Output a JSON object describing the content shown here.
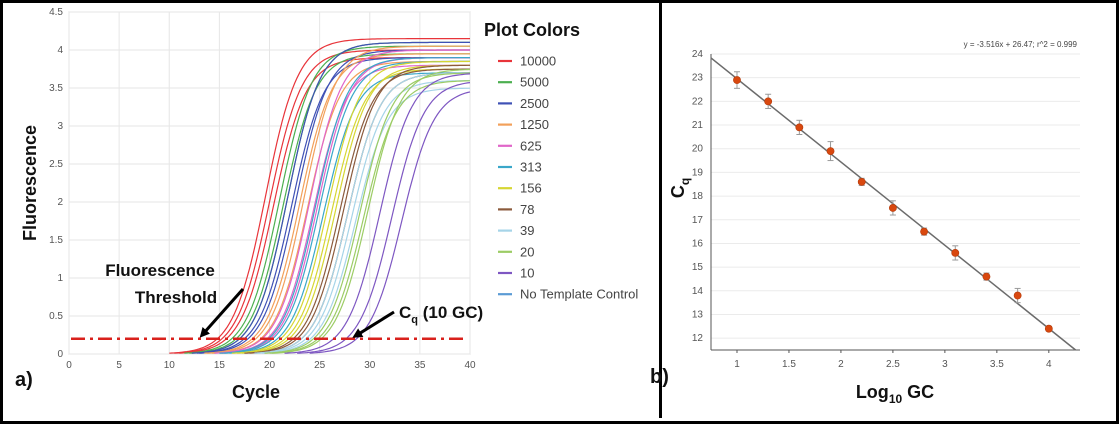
{
  "chart_data": [
    {
      "type": "line",
      "panel_label": "a)",
      "xlabel": "Cycle",
      "ylabel": "Fluorescence",
      "xlim": [
        0,
        40
      ],
      "ylim": [
        0,
        4.5
      ],
      "xticks": [
        0,
        5,
        10,
        15,
        20,
        25,
        30,
        35,
        40
      ],
      "yticks": [
        0,
        0.5,
        1,
        1.5,
        2,
        2.5,
        3,
        3.5,
        4,
        4.5
      ],
      "ytick_labels": [
        "0",
        "0.5",
        "1",
        "1.5",
        "2",
        "2.5",
        "3",
        "3.5",
        "4",
        "4.5"
      ],
      "legend_title": "Plot Colors",
      "threshold": 0.2,
      "threshold_color": "#d9211c",
      "annotations": {
        "threshold_label": [
          "Fluorescence",
          "Threshold"
        ],
        "cq_label": "C",
        "cq_sub": "q",
        "cq_rest": " (10 GC)",
        "cq_arrow_target": [
          28,
          0.2
        ],
        "threshold_arrow_target": [
          12.5,
          0.2
        ]
      },
      "series": [
        {
          "name": "10000",
          "color": "#e8343a",
          "midpoints": [
            19.6,
            20.0,
            20.4
          ],
          "plateaus": [
            4.15,
            4.0,
            3.9
          ]
        },
        {
          "name": "5000",
          "color": "#4caf50",
          "midpoints": [
            21.0,
            21.4,
            21.8
          ],
          "plateaus": [
            4.05,
            3.95,
            4.1
          ]
        },
        {
          "name": "2500",
          "color": "#3f51b5",
          "midpoints": [
            21.8,
            22.2,
            22.6
          ],
          "plateaus": [
            4.1,
            3.9,
            4.0
          ]
        },
        {
          "name": "1250",
          "color": "#f2a05a",
          "midpoints": [
            23.0,
            23.4,
            23.8
          ],
          "plateaus": [
            3.95,
            4.05,
            3.85
          ]
        },
        {
          "name": "625",
          "color": "#e066c9",
          "midpoints": [
            24.0,
            24.4,
            24.8
          ],
          "plateaus": [
            4.0,
            3.8,
            3.9
          ]
        },
        {
          "name": "313",
          "color": "#3aa7c9",
          "midpoints": [
            24.6,
            25.0,
            25.4
          ],
          "plateaus": [
            3.9,
            3.85,
            3.7
          ]
        },
        {
          "name": "156",
          "color": "#d6d633",
          "midpoints": [
            25.8,
            26.2,
            26.6
          ],
          "plateaus": [
            3.85,
            3.75,
            3.8
          ]
        },
        {
          "name": "78",
          "color": "#8b5a3c",
          "midpoints": [
            27.0,
            27.4,
            27.8
          ],
          "plateaus": [
            3.75,
            3.8,
            3.7
          ]
        },
        {
          "name": "39",
          "color": "#a6d4e8",
          "midpoints": [
            27.8,
            28.2,
            28.6
          ],
          "plateaus": [
            3.7,
            3.6,
            3.5
          ]
        },
        {
          "name": "20",
          "color": "#9ccc65",
          "midpoints": [
            29.0,
            29.4,
            29.8
          ],
          "plateaus": [
            3.7,
            3.6,
            3.75
          ]
        },
        {
          "name": "10",
          "color": "#7e57c2",
          "midpoints": [
            31.0,
            32.2,
            33.2
          ],
          "plateaus": [
            3.7,
            3.6,
            3.5
          ]
        },
        {
          "name": "No Template Control",
          "color": "#5b9bd5",
          "midpoints": [],
          "plateaus": []
        }
      ]
    },
    {
      "type": "scatter",
      "panel_label": "b)",
      "xlabel_main": "Log",
      "xlabel_sub": "10",
      "xlabel_rest": " GC",
      "ylabel_main": "C",
      "ylabel_sub": "q",
      "xlim": [
        0.75,
        4.3
      ],
      "ylim": [
        11.5,
        24
      ],
      "xticks": [
        1,
        1.5,
        2,
        2.5,
        3,
        3.5,
        4
      ],
      "xtick_labels": [
        "1",
        "1.5",
        "2",
        "2.5",
        "3",
        "3.5",
        "4"
      ],
      "yticks": [
        12,
        13,
        14,
        15,
        16,
        17,
        18,
        19,
        20,
        21,
        22,
        23,
        24
      ],
      "equation": "y = -3.516x + 26.47; r^2 = 0.999",
      "fit_slope": -3.516,
      "fit_intercept": 26.47,
      "point_color": "#d9480f",
      "x": [
        1.0,
        1.3,
        1.6,
        1.9,
        2.2,
        2.5,
        2.8,
        3.1,
        3.4,
        3.7,
        4.0
      ],
      "y": [
        22.9,
        22.0,
        20.9,
        19.9,
        18.6,
        17.5,
        16.5,
        15.6,
        14.6,
        13.8,
        12.4
      ],
      "err": [
        0.35,
        0.3,
        0.3,
        0.4,
        0.15,
        0.3,
        0.15,
        0.3,
        0.15,
        0.3,
        0.1
      ]
    }
  ]
}
